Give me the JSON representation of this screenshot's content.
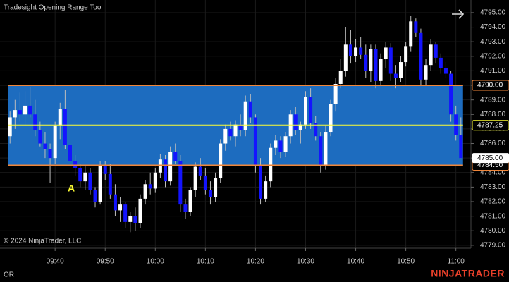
{
  "chart_data": {
    "type": "candlestick",
    "title": "Tradesight Opening Range Tool",
    "copyright": "© 2024 NinjaTrader, LLC",
    "footer_left": "OR",
    "brand": "NINJATRADER",
    "annotations": [
      "A"
    ],
    "x": [
      "09:31",
      "09:32",
      "09:33",
      "09:34",
      "09:35",
      "09:36",
      "09:37",
      "09:38",
      "09:39",
      "09:40",
      "09:41",
      "09:42",
      "09:43",
      "09:44",
      "09:45",
      "09:46",
      "09:47",
      "09:48",
      "09:49",
      "09:50",
      "09:51",
      "09:52",
      "09:53",
      "09:54",
      "09:55",
      "09:56",
      "09:57",
      "09:58",
      "09:59",
      "10:00",
      "10:01",
      "10:02",
      "10:03",
      "10:04",
      "10:05",
      "10:06",
      "10:07",
      "10:08",
      "10:09",
      "10:10",
      "10:11",
      "10:12",
      "10:13",
      "10:14",
      "10:15",
      "10:16",
      "10:17",
      "10:18",
      "10:19",
      "10:20",
      "10:21",
      "10:22",
      "10:23",
      "10:24",
      "10:25",
      "10:26",
      "10:27",
      "10:28",
      "10:29",
      "10:30",
      "10:31",
      "10:32",
      "10:33",
      "10:34",
      "10:35",
      "10:36",
      "10:37",
      "10:38",
      "10:39",
      "10:40",
      "10:41",
      "10:42",
      "10:43",
      "10:44",
      "10:45",
      "10:46",
      "10:47",
      "10:48",
      "10:49",
      "10:50",
      "10:51",
      "10:52",
      "10:53",
      "10:54",
      "10:55",
      "10:56",
      "10:57",
      "10:58",
      "10:59",
      "11:00",
      "11:01"
    ],
    "open": [
      4786.5,
      4787.8,
      4788.3,
      4788.0,
      4788.6,
      4788.0,
      4786.9,
      4786.0,
      4785.6,
      4785.0,
      4787.2,
      4788.4,
      4785.9,
      4784.8,
      4784.3,
      4783.4,
      4784.0,
      4782.8,
      4782.0,
      4784.5,
      4783.9,
      4782.5,
      4781.4,
      4781.8,
      4780.6,
      4781.0,
      4780.5,
      4782.2,
      4783.2,
      4782.9,
      4784.0,
      4784.9,
      4783.4,
      4785.4,
      4784.8,
      4781.8,
      4781.3,
      4782.8,
      4784.4,
      4783.8,
      4782.8,
      4782.3,
      4783.6,
      4786.0,
      4787.0,
      4786.5,
      4787.3,
      4786.9,
      4788.9,
      4787.8,
      4784.5,
      4782.2,
      4783.4,
      4785.7,
      4786.2,
      4785.4,
      4786.5,
      4788.0,
      4786.9,
      4787.3,
      4789.2,
      4787.4,
      4786.5,
      4784.5,
      4786.8,
      4788.7,
      4790.1,
      4791.0,
      4792.8,
      4792.0,
      4792.6,
      4792.1,
      4791.0,
      4792.5,
      4790.3,
      4791.8,
      4792.6,
      4790.8,
      4790.5,
      4791.6,
      4792.7,
      4794.4,
      4793.6,
      4790.4,
      4791.4,
      4792.8,
      4791.9,
      4791.2,
      4790.8,
      4788.0,
      4786.6
    ],
    "high": [
      4788.2,
      4789.0,
      4789.5,
      4789.6,
      4789.9,
      4789.0,
      4787.5,
      4786.8,
      4786.0,
      4787.5,
      4788.8,
      4789.7,
      4786.5,
      4785.2,
      4784.6,
      4784.5,
      4784.3,
      4783.0,
      4784.8,
      4784.8,
      4784.6,
      4783.2,
      4782.3,
      4782.0,
      4781.3,
      4781.6,
      4782.5,
      4783.5,
      4784.0,
      4784.3,
      4785.3,
      4785.2,
      4785.8,
      4786.0,
      4785.2,
      4782.2,
      4783.0,
      4784.7,
      4785.0,
      4784.3,
      4783.4,
      4784.0,
      4786.3,
      4787.3,
      4787.5,
      4787.6,
      4788.0,
      4789.3,
      4789.4,
      4788.0,
      4785.0,
      4783.8,
      4786.0,
      4786.6,
      4786.5,
      4786.8,
      4788.3,
      4788.5,
      4787.5,
      4789.6,
      4789.8,
      4787.9,
      4786.8,
      4787.2,
      4789.0,
      4790.5,
      4791.8,
      4794.0,
      4793.8,
      4793.2,
      4793.3,
      4792.8,
      4792.8,
      4792.8,
      4792.2,
      4793.0,
      4792.9,
      4791.4,
      4792.0,
      4793.0,
      4794.8,
      4794.6,
      4793.9,
      4791.8,
      4793.2,
      4793.0,
      4792.2,
      4791.6,
      4791.0,
      4788.6,
      4787.8
    ],
    "low": [
      4786.0,
      4787.0,
      4787.5,
      4787.2,
      4787.8,
      4786.5,
      4785.8,
      4785.0,
      4783.3,
      4784.6,
      4786.3,
      4785.6,
      4784.2,
      4783.8,
      4783.0,
      4782.8,
      4782.5,
      4781.6,
      4781.8,
      4783.5,
      4782.2,
      4781.0,
      4780.6,
      4780.2,
      4779.9,
      4780.0,
      4780.2,
      4781.8,
      4782.5,
      4782.6,
      4783.6,
      4783.0,
      4783.1,
      4784.6,
      4781.3,
      4780.8,
      4781.0,
      4782.3,
      4783.5,
      4782.5,
      4781.8,
      4782.0,
      4783.3,
      4785.5,
      4786.2,
      4785.8,
      4786.5,
      4786.5,
      4787.4,
      4784.0,
      4781.8,
      4782.0,
      4783.0,
      4785.2,
      4785.0,
      4785.1,
      4786.0,
      4786.6,
      4786.0,
      4787.0,
      4787.0,
      4786.2,
      4784.0,
      4784.2,
      4786.5,
      4788.2,
      4789.8,
      4790.6,
      4791.5,
      4791.6,
      4791.8,
      4790.5,
      4790.2,
      4789.8,
      4790.0,
      4791.2,
      4790.3,
      4789.8,
      4790.2,
      4791.3,
      4792.3,
      4793.3,
      4790.0,
      4790.0,
      4791.0,
      4791.5,
      4790.8,
      4790.5,
      4787.5,
      4786.2,
      4785.0
    ],
    "close": [
      4787.8,
      4788.3,
      4788.0,
      4788.6,
      4788.0,
      4786.9,
      4786.0,
      4785.6,
      4785.0,
      4787.2,
      4788.4,
      4785.9,
      4784.8,
      4784.3,
      4783.4,
      4784.0,
      4782.8,
      4782.0,
      4784.5,
      4783.9,
      4782.5,
      4781.4,
      4781.8,
      4780.6,
      4781.0,
      4780.5,
      4782.2,
      4783.2,
      4782.9,
      4784.0,
      4784.9,
      4783.4,
      4785.4,
      4784.8,
      4781.8,
      4781.3,
      4782.8,
      4784.4,
      4783.8,
      4782.8,
      4782.3,
      4783.6,
      4786.0,
      4787.0,
      4786.5,
      4787.3,
      4786.9,
      4788.9,
      4787.8,
      4784.5,
      4782.2,
      4783.4,
      4785.7,
      4786.2,
      4785.4,
      4786.5,
      4788.0,
      4786.9,
      4787.3,
      4789.2,
      4787.4,
      4786.5,
      4784.5,
      4786.8,
      4788.7,
      4790.1,
      4791.0,
      4792.8,
      4792.0,
      4792.6,
      4792.1,
      4791.0,
      4792.5,
      4790.3,
      4791.8,
      4792.6,
      4790.8,
      4790.5,
      4791.6,
      4792.7,
      4794.4,
      4793.6,
      4790.4,
      4791.4,
      4792.8,
      4791.9,
      4791.2,
      4790.8,
      4788.0,
      4786.6,
      4785.0
    ],
    "up_color": "#ffffff",
    "down_color": "#1414ff",
    "wick_color": "#bdbdbd",
    "levels": {
      "values": [
        4790,
        4787.25,
        4784.5
      ],
      "value_labels": [
        "4790.00",
        "4787.25",
        "4784.50"
      ],
      "colors": [
        "#f0863a",
        "#ffff33",
        "#f0863a"
      ]
    },
    "range_color": "#1d6cbf",
    "last_price": {
      "value": 4785,
      "label": "4785.00"
    },
    "xlim": [
      "09:29",
      "11:03"
    ],
    "xticks": [
      "09:40",
      "09:50",
      "10:00",
      "10:10",
      "10:20",
      "10:30",
      "10:40",
      "10:50",
      "11:00"
    ],
    "ylim": [
      4778.8,
      4795.87
    ],
    "yticks": [
      {
        "value": 4779,
        "label": "4779.00"
      },
      {
        "value": 4780,
        "label": "4780.00"
      },
      {
        "value": 4781,
        "label": "4781.00"
      },
      {
        "value": 4782,
        "label": "4782.00"
      },
      {
        "value": 4783,
        "label": "4783.00"
      },
      {
        "value": 4784,
        "label": "4784.00"
      },
      {
        "value": 4785,
        "label": "4785.00"
      },
      {
        "value": 4786,
        "label": "4786.00"
      },
      {
        "value": 4787,
        "label": "4787.00"
      },
      {
        "value": 4788,
        "label": "4788.00"
      },
      {
        "value": 4789,
        "label": "4789.00"
      },
      {
        "value": 4790,
        "label": "4790.00"
      },
      {
        "value": 4791,
        "label": "4791.00"
      },
      {
        "value": 4792,
        "label": "4792.00"
      },
      {
        "value": 4793,
        "label": "4793.00"
      },
      {
        "value": 4794,
        "label": "4794.00"
      },
      {
        "value": 4795,
        "label": "4795.00"
      }
    ],
    "grid": true
  }
}
